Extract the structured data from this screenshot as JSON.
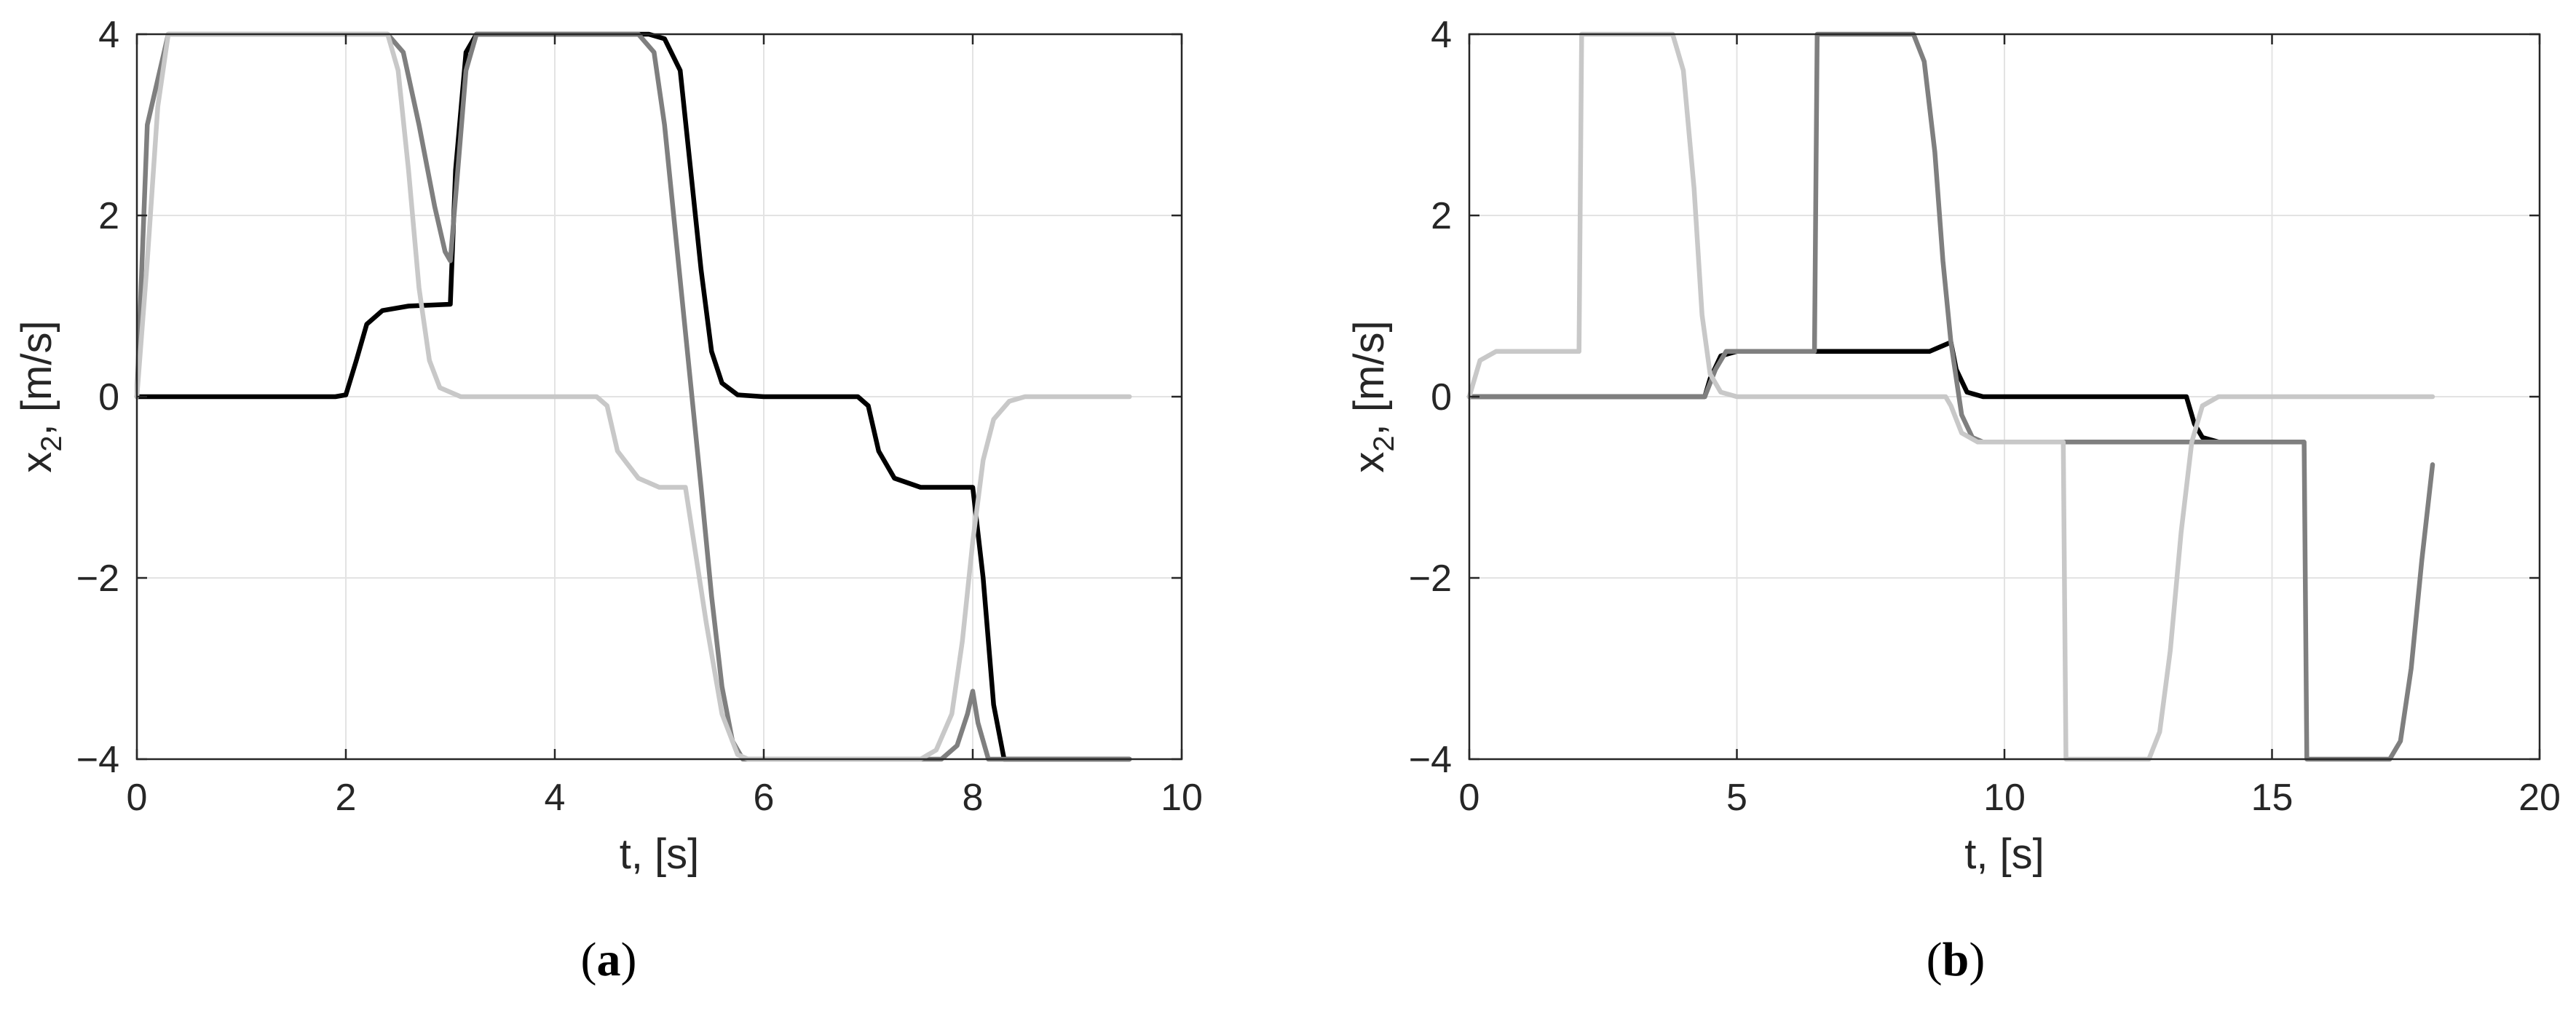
{
  "chart_data": [
    {
      "type": "line",
      "panel_label": "(a)",
      "panel_letter": "a",
      "xlabel": "t, [s]",
      "ylabel_main": "x",
      "ylabel_sub": "2",
      "ylabel_rest": ", [m/s]",
      "xlim": [
        0,
        10
      ],
      "ylim": [
        -4,
        4
      ],
      "xticks": [
        0,
        2,
        4,
        6,
        8,
        10
      ],
      "yticks": [
        -4,
        -2,
        0,
        2,
        4
      ],
      "ytick_labels": [
        "−4",
        "−2",
        "0",
        "2",
        "4"
      ],
      "grid": true,
      "series": [
        {
          "color": "#000000",
          "x": [
            0,
            1.9,
            2.0,
            2.1,
            2.2,
            2.35,
            2.6,
            3.0,
            3.05,
            3.15,
            3.25,
            4.9,
            5.05,
            5.2,
            5.3,
            5.4,
            5.5,
            5.6,
            5.75,
            6.0,
            6.9,
            7.0,
            7.1,
            7.25,
            7.5,
            7.9,
            8.0,
            8.1,
            8.2,
            8.3,
            9.5
          ],
          "y": [
            0,
            0,
            0.02,
            0.4,
            0.8,
            0.95,
            1.0,
            1.02,
            2.5,
            3.8,
            4.0,
            4.0,
            3.95,
            3.6,
            2.5,
            1.4,
            0.5,
            0.15,
            0.02,
            0,
            0,
            -0.1,
            -0.6,
            -0.9,
            -1.0,
            -1.0,
            -1.0,
            -2.0,
            -3.4,
            -4.0,
            -4.0
          ]
        },
        {
          "color": "#7f7f7f",
          "x": [
            0,
            0.1,
            0.3,
            2.4,
            2.55,
            2.7,
            2.85,
            2.95,
            3.0,
            3.05,
            3.15,
            3.25,
            3.3,
            4.8,
            4.95,
            5.05,
            5.4,
            5.5,
            5.6,
            5.7,
            5.8,
            7.7,
            7.85,
            7.95,
            8.0,
            8.05,
            8.15,
            8.3,
            9.5
          ],
          "y": [
            0,
            3.0,
            4.0,
            4.0,
            3.8,
            3.0,
            2.1,
            1.6,
            1.5,
            2.2,
            3.6,
            4.0,
            4.0,
            4.0,
            3.8,
            3.0,
            -1.0,
            -2.2,
            -3.2,
            -3.8,
            -4.0,
            -4.0,
            -3.85,
            -3.5,
            -3.25,
            -3.6,
            -4.0,
            -4.0,
            -4.0
          ]
        },
        {
          "color": "#c8c8c8",
          "x": [
            0,
            0.1,
            0.2,
            0.3,
            2.4,
            2.5,
            2.6,
            2.7,
            2.8,
            2.9,
            3.1,
            4.4,
            4.5,
            4.6,
            4.8,
            5.0,
            5.2,
            5.25,
            5.45,
            5.6,
            5.75,
            5.85,
            7.5,
            7.65,
            7.8,
            7.9,
            8.0,
            8.1,
            8.2,
            8.35,
            8.5,
            9.5
          ],
          "y": [
            0,
            1.5,
            3.2,
            4.0,
            4.0,
            3.6,
            2.5,
            1.2,
            0.4,
            0.1,
            0,
            0,
            -0.1,
            -0.6,
            -0.9,
            -1.0,
            -1.0,
            -1.0,
            -2.5,
            -3.5,
            -3.95,
            -4.0,
            -4.0,
            -3.9,
            -3.5,
            -2.7,
            -1.6,
            -0.7,
            -0.25,
            -0.05,
            0,
            0
          ]
        }
      ]
    },
    {
      "type": "line",
      "panel_label": "(b)",
      "panel_letter": "b",
      "xlabel": "t, [s]",
      "ylabel_main": "x",
      "ylabel_sub": "2",
      "ylabel_rest": ", [m/s]",
      "xlim": [
        0,
        20
      ],
      "ylim": [
        -4,
        4
      ],
      "xticks": [
        0,
        5,
        10,
        15,
        20
      ],
      "yticks": [
        -4,
        -2,
        0,
        2,
        4
      ],
      "ytick_labels": [
        "−4",
        "−2",
        "0",
        "2",
        "4"
      ],
      "grid": true,
      "series": [
        {
          "color": "#000000",
          "x": [
            0,
            4.4,
            4.5,
            4.7,
            5.0,
            6.5,
            8.6,
            8.8,
            9.0,
            9.1,
            9.3,
            9.6,
            10.0,
            13.4,
            13.55,
            13.7,
            14.0,
            15.0
          ],
          "y": [
            0,
            0,
            0.2,
            0.45,
            0.5,
            0.5,
            0.5,
            0.55,
            0.6,
            0.3,
            0.05,
            0.0,
            0,
            0,
            -0.3,
            -0.45,
            -0.5,
            -0.5
          ]
        },
        {
          "color": "#7f7f7f",
          "x": [
            0,
            4.4,
            4.6,
            4.8,
            5.0,
            6.45,
            6.5,
            6.6,
            8.3,
            8.5,
            8.7,
            8.85,
            9.0,
            9.2,
            9.4,
            9.6,
            10.0,
            11.0,
            13.3,
            13.5,
            13.7,
            14.0,
            15.6,
            15.65,
            15.8,
            16.5,
            17.2,
            17.4,
            17.6,
            17.8,
            18.0
          ],
          "y": [
            0,
            0,
            0.3,
            0.5,
            0.5,
            0.5,
            4.0,
            4.0,
            4.0,
            3.7,
            2.7,
            1.5,
            0.6,
            -0.2,
            -0.45,
            -0.5,
            -0.5,
            -0.5,
            -0.5,
            -0.5,
            -0.5,
            -0.5,
            -0.5,
            -4.0,
            -4.0,
            -4.0,
            -4.0,
            -3.8,
            -3.0,
            -1.8,
            -0.75
          ]
        },
        {
          "color": "#c8c8c8",
          "x": [
            0,
            0.2,
            0.5,
            2.05,
            2.1,
            2.2,
            3.8,
            4.0,
            4.2,
            4.35,
            4.5,
            4.7,
            5.0,
            8.9,
            9.0,
            9.2,
            9.5,
            10.0,
            11.1,
            11.15,
            11.3,
            12.7,
            12.9,
            13.1,
            13.3,
            13.5,
            13.7,
            14.0,
            18.0
          ],
          "y": [
            0,
            0.4,
            0.5,
            0.5,
            4.0,
            4.0,
            4.0,
            3.6,
            2.3,
            0.9,
            0.25,
            0.05,
            0,
            0,
            -0.1,
            -0.4,
            -0.5,
            -0.5,
            -0.5,
            -4.0,
            -4.0,
            -4.0,
            -3.7,
            -2.8,
            -1.5,
            -0.5,
            -0.1,
            0,
            0
          ]
        }
      ]
    }
  ]
}
